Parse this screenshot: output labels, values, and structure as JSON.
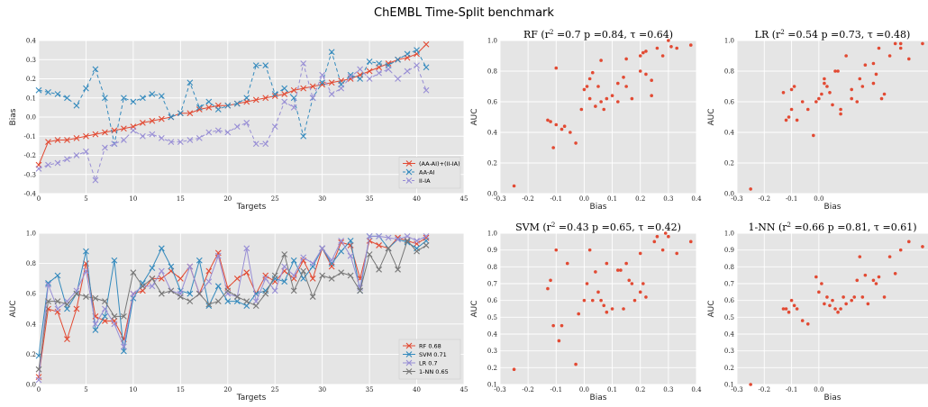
{
  "figure": {
    "title": "ChEMBL Time-Split benchmark"
  },
  "chart_data": [
    {
      "id": "bias-line",
      "type": "line",
      "title": "",
      "xlabel": "Targets",
      "ylabel": "Bias",
      "xlim": [
        0,
        45
      ],
      "ylim": [
        -0.4,
        0.4
      ],
      "xticks": [
        0,
        5,
        10,
        15,
        20,
        25,
        30,
        35,
        40,
        45
      ],
      "yticks": [
        -0.4,
        -0.3,
        -0.2,
        -0.1,
        0.0,
        0.1,
        0.2,
        0.3,
        0.4
      ],
      "grid": true,
      "legend_position": "bottom-right",
      "series": [
        {
          "name": "(AA-AI)+(II-IA)",
          "color": "#e24a33",
          "dashed": false,
          "values": [
            -0.25,
            -0.13,
            -0.12,
            -0.12,
            -0.11,
            -0.1,
            -0.09,
            -0.08,
            -0.07,
            -0.06,
            -0.05,
            -0.03,
            -0.02,
            -0.01,
            0.0,
            0.02,
            0.02,
            0.04,
            0.05,
            0.06,
            0.06,
            0.07,
            0.08,
            0.09,
            0.1,
            0.11,
            0.12,
            0.14,
            0.15,
            0.16,
            0.17,
            0.18,
            0.19,
            0.2,
            0.22,
            0.24,
            0.26,
            0.28,
            0.3,
            0.31,
            0.33,
            0.38
          ]
        },
        {
          "name": "AA-AI",
          "color": "#348abd",
          "dashed": true,
          "values": [
            0.14,
            0.13,
            0.12,
            0.1,
            0.06,
            0.15,
            0.25,
            0.1,
            -0.14,
            0.1,
            0.08,
            0.1,
            0.12,
            0.11,
            0.0,
            0.02,
            0.18,
            0.05,
            0.08,
            0.04,
            0.06,
            0.07,
            0.1,
            0.27,
            0.27,
            0.12,
            0.15,
            0.1,
            -0.1,
            0.1,
            0.18,
            0.34,
            0.17,
            0.22,
            0.2,
            0.29,
            0.28,
            0.27,
            0.3,
            0.33,
            0.35,
            0.26
          ]
        },
        {
          "name": "II-IA",
          "color": "#988ed5",
          "dashed": true,
          "values": [
            -0.27,
            -0.25,
            -0.24,
            -0.22,
            -0.2,
            -0.18,
            -0.33,
            -0.16,
            -0.14,
            -0.12,
            -0.07,
            -0.1,
            -0.09,
            -0.11,
            -0.13,
            -0.13,
            -0.12,
            -0.11,
            -0.08,
            -0.07,
            -0.08,
            -0.05,
            -0.03,
            -0.14,
            -0.14,
            -0.05,
            0.08,
            0.05,
            0.28,
            0.1,
            0.22,
            0.12,
            0.15,
            0.21,
            0.25,
            0.2,
            0.23,
            0.25,
            0.2,
            0.24,
            0.27,
            0.14
          ]
        }
      ]
    },
    {
      "id": "auc-line",
      "type": "line",
      "title": "",
      "xlabel": "Targets",
      "ylabel": "AUC",
      "xlim": [
        0,
        45
      ],
      "ylim": [
        0.0,
        1.0
      ],
      "xticks": [
        0,
        5,
        10,
        15,
        20,
        25,
        30,
        35,
        40,
        45
      ],
      "yticks": [
        0.0,
        0.2,
        0.4,
        0.6,
        0.8,
        1.0
      ],
      "grid": true,
      "legend_position": "bottom-right",
      "series": [
        {
          "name": "RF 0.68",
          "color": "#e24a33",
          "values": [
            0.05,
            0.5,
            0.48,
            0.3,
            0.5,
            0.8,
            0.45,
            0.42,
            0.42,
            0.3,
            0.6,
            0.62,
            0.7,
            0.7,
            0.75,
            0.7,
            0.78,
            0.6,
            0.75,
            0.87,
            0.64,
            0.7,
            0.74,
            0.6,
            0.72,
            0.68,
            0.75,
            0.7,
            0.82,
            0.7,
            0.9,
            0.78,
            0.94,
            0.92,
            0.7,
            0.95,
            0.92,
            0.9,
            0.97,
            0.95,
            0.93,
            0.97
          ]
        },
        {
          "name": "SVM 0.71",
          "color": "#348abd",
          "values": [
            0.19,
            0.67,
            0.72,
            0.5,
            0.6,
            0.88,
            0.36,
            0.45,
            0.82,
            0.22,
            0.57,
            0.67,
            0.77,
            0.9,
            0.78,
            0.62,
            0.6,
            0.82,
            0.52,
            0.65,
            0.55,
            0.55,
            0.52,
            0.6,
            0.62,
            0.7,
            0.68,
            0.82,
            0.7,
            0.78,
            0.9,
            0.8,
            0.88,
            0.95,
            0.62,
            0.98,
            0.98,
            0.9,
            0.96,
            0.94,
            0.9,
            0.95
          ]
        },
        {
          "name": "LR 0.7",
          "color": "#988ed5",
          "values": [
            0.03,
            0.66,
            0.5,
            0.55,
            0.62,
            0.75,
            0.4,
            0.5,
            0.4,
            0.25,
            0.6,
            0.65,
            0.65,
            0.75,
            0.62,
            0.6,
            0.78,
            0.6,
            0.68,
            0.85,
            0.6,
            0.58,
            0.9,
            0.55,
            0.7,
            0.62,
            0.78,
            0.72,
            0.84,
            0.8,
            0.9,
            0.82,
            0.95,
            0.85,
            0.64,
            0.98,
            0.98,
            0.97,
            0.96,
            0.98,
            0.95,
            0.98
          ]
        },
        {
          "name": "1-NN 0.65",
          "color": "#777777",
          "values": [
            0.1,
            0.55,
            0.55,
            0.53,
            0.6,
            0.58,
            0.57,
            0.55,
            0.45,
            0.45,
            0.74,
            0.65,
            0.7,
            0.6,
            0.62,
            0.58,
            0.55,
            0.6,
            0.53,
            0.55,
            0.62,
            0.58,
            0.55,
            0.52,
            0.6,
            0.72,
            0.86,
            0.62,
            0.75,
            0.58,
            0.72,
            0.7,
            0.74,
            0.72,
            0.62,
            0.86,
            0.76,
            0.9,
            0.76,
            0.95,
            0.88,
            0.92
          ]
        }
      ],
      "values_by_note": "RF/SVM/LR/1-NN AUC per target"
    },
    {
      "id": "scatter-rf",
      "type": "scatter",
      "title": "RF (r² =0.7 p =0.84, τ =0.64)",
      "xlabel": "Bias",
      "ylabel": "AUC",
      "xlim": [
        -0.3,
        0.4
      ],
      "ylim": [
        0.0,
        1.0
      ],
      "xticks": [
        -0.3,
        -0.2,
        -0.1,
        0.0,
        0.1,
        0.2,
        0.3,
        0.4
      ],
      "yticks": [
        0.0,
        0.2,
        0.4,
        0.6,
        0.8,
        1.0
      ],
      "color": "#e24a33",
      "points": [
        [
          -0.25,
          0.05
        ],
        [
          -0.13,
          0.48
        ],
        [
          -0.12,
          0.47
        ],
        [
          -0.11,
          0.3
        ],
        [
          -0.1,
          0.45
        ],
        [
          -0.1,
          0.82
        ],
        [
          -0.08,
          0.42
        ],
        [
          -0.07,
          0.44
        ],
        [
          -0.05,
          0.4
        ],
        [
          -0.03,
          0.33
        ],
        [
          -0.01,
          0.55
        ],
        [
          0.0,
          0.68
        ],
        [
          0.01,
          0.7
        ],
        [
          0.02,
          0.62
        ],
        [
          0.02,
          0.75
        ],
        [
          0.03,
          0.79
        ],
        [
          0.04,
          0.57
        ],
        [
          0.05,
          0.7
        ],
        [
          0.06,
          0.6
        ],
        [
          0.06,
          0.87
        ],
        [
          0.07,
          0.55
        ],
        [
          0.08,
          0.62
        ],
        [
          0.1,
          0.64
        ],
        [
          0.12,
          0.6
        ],
        [
          0.12,
          0.72
        ],
        [
          0.14,
          0.76
        ],
        [
          0.15,
          0.88
        ],
        [
          0.15,
          0.7
        ],
        [
          0.17,
          0.62
        ],
        [
          0.2,
          0.8
        ],
        [
          0.2,
          0.9
        ],
        [
          0.21,
          0.92
        ],
        [
          0.22,
          0.78
        ],
        [
          0.22,
          0.93
        ],
        [
          0.24,
          0.74
        ],
        [
          0.24,
          0.64
        ],
        [
          0.26,
          0.95
        ],
        [
          0.28,
          0.9
        ],
        [
          0.3,
          1.0
        ],
        [
          0.31,
          0.96
        ],
        [
          0.33,
          0.95
        ],
        [
          0.38,
          0.97
        ]
      ]
    },
    {
      "id": "scatter-lr",
      "type": "scatter",
      "title": "LR (r² =0.54 p =0.73, τ =0.48)",
      "xlabel": "Bias",
      "ylabel": "AUC",
      "xlim": [
        -0.3,
        0.4
      ],
      "ylim": [
        0.0,
        1.0
      ],
      "xticks": [
        -0.3,
        -0.2,
        -0.1,
        0.0
      ],
      "yticks": [
        0.0,
        0.2,
        0.4,
        0.6,
        0.8,
        1.0
      ],
      "color": "#e24a33",
      "points": [
        [
          -0.25,
          0.03
        ],
        [
          -0.13,
          0.66
        ],
        [
          -0.12,
          0.48
        ],
        [
          -0.11,
          0.5
        ],
        [
          -0.1,
          0.55
        ],
        [
          -0.1,
          0.68
        ],
        [
          -0.09,
          0.7
        ],
        [
          -0.08,
          0.48
        ],
        [
          -0.06,
          0.6
        ],
        [
          -0.04,
          0.55
        ],
        [
          -0.02,
          0.38
        ],
        [
          -0.01,
          0.6
        ],
        [
          0.0,
          0.62
        ],
        [
          0.01,
          0.65
        ],
        [
          0.02,
          0.75
        ],
        [
          0.02,
          0.72
        ],
        [
          0.03,
          0.7
        ],
        [
          0.04,
          0.66
        ],
        [
          0.05,
          0.58
        ],
        [
          0.06,
          0.8
        ],
        [
          0.07,
          0.8
        ],
        [
          0.08,
          0.55
        ],
        [
          0.08,
          0.52
        ],
        [
          0.1,
          0.9
        ],
        [
          0.12,
          0.68
        ],
        [
          0.12,
          0.62
        ],
        [
          0.14,
          0.6
        ],
        [
          0.15,
          0.75
        ],
        [
          0.16,
          0.7
        ],
        [
          0.17,
          0.84
        ],
        [
          0.2,
          0.72
        ],
        [
          0.2,
          0.85
        ],
        [
          0.21,
          0.78
        ],
        [
          0.22,
          0.95
        ],
        [
          0.23,
          0.62
        ],
        [
          0.24,
          0.65
        ],
        [
          0.26,
          0.9
        ],
        [
          0.28,
          0.98
        ],
        [
          0.3,
          0.95
        ],
        [
          0.3,
          0.98
        ],
        [
          0.33,
          0.88
        ],
        [
          0.38,
          0.98
        ]
      ]
    },
    {
      "id": "scatter-svm",
      "type": "scatter",
      "title": "SVM (r² =0.43 p =0.65, τ =0.42)",
      "xlabel": "Bias",
      "ylabel": "AUC",
      "xlim": [
        -0.3,
        0.4
      ],
      "ylim": [
        0.1,
        1.0
      ],
      "xticks": [
        -0.3,
        -0.2,
        -0.1,
        0.0,
        0.1,
        0.2,
        0.3,
        0.4
      ],
      "yticks": [
        0.1,
        0.2,
        0.3,
        0.4,
        0.5,
        0.6,
        0.7,
        0.8,
        0.9,
        1.0
      ],
      "color": "#e24a33",
      "points": [
        [
          -0.25,
          0.19
        ],
        [
          -0.13,
          0.67
        ],
        [
          -0.12,
          0.72
        ],
        [
          -0.11,
          0.45
        ],
        [
          -0.1,
          0.9
        ],
        [
          -0.09,
          0.36
        ],
        [
          -0.08,
          0.45
        ],
        [
          -0.06,
          0.82
        ],
        [
          -0.03,
          0.22
        ],
        [
          -0.02,
          0.52
        ],
        [
          0.0,
          0.6
        ],
        [
          0.01,
          0.7
        ],
        [
          0.02,
          0.9
        ],
        [
          0.03,
          0.6
        ],
        [
          0.04,
          0.77
        ],
        [
          0.05,
          0.65
        ],
        [
          0.06,
          0.6
        ],
        [
          0.07,
          0.57
        ],
        [
          0.08,
          0.53
        ],
        [
          0.08,
          0.82
        ],
        [
          0.1,
          0.55
        ],
        [
          0.12,
          0.78
        ],
        [
          0.13,
          0.78
        ],
        [
          0.14,
          0.55
        ],
        [
          0.15,
          0.82
        ],
        [
          0.16,
          0.72
        ],
        [
          0.17,
          0.7
        ],
        [
          0.18,
          0.6
        ],
        [
          0.2,
          0.88
        ],
        [
          0.2,
          0.65
        ],
        [
          0.21,
          0.7
        ],
        [
          0.22,
          0.62
        ],
        [
          0.25,
          0.95
        ],
        [
          0.26,
          0.98
        ],
        [
          0.28,
          0.9
        ],
        [
          0.29,
          1.0
        ],
        [
          0.3,
          0.98
        ],
        [
          0.33,
          0.88
        ],
        [
          0.38,
          0.95
        ]
      ]
    },
    {
      "id": "scatter-1nn",
      "type": "scatter",
      "title": "1-NN (r² =0.66 p =0.81, τ =0.61)",
      "xlabel": "Bias",
      "ylabel": "AUC",
      "xlim": [
        -0.3,
        0.4
      ],
      "ylim": [
        0.1,
        1.0
      ],
      "xticks": [
        -0.3,
        -0.2,
        -0.1,
        0.0
      ],
      "yticks": [
        0.1,
        0.2,
        0.3,
        0.4,
        0.5,
        0.6,
        0.7,
        0.8,
        0.9,
        1.0
      ],
      "color": "#e24a33",
      "points": [
        [
          -0.25,
          0.1
        ],
        [
          -0.13,
          0.55
        ],
        [
          -0.12,
          0.55
        ],
        [
          -0.11,
          0.53
        ],
        [
          -0.1,
          0.6
        ],
        [
          -0.09,
          0.57
        ],
        [
          -0.08,
          0.55
        ],
        [
          -0.06,
          0.48
        ],
        [
          -0.04,
          0.46
        ],
        [
          -0.01,
          0.74
        ],
        [
          0.0,
          0.65
        ],
        [
          0.01,
          0.7
        ],
        [
          0.02,
          0.58
        ],
        [
          0.03,
          0.62
        ],
        [
          0.04,
          0.57
        ],
        [
          0.05,
          0.6
        ],
        [
          0.06,
          0.55
        ],
        [
          0.07,
          0.53
        ],
        [
          0.08,
          0.55
        ],
        [
          0.09,
          0.62
        ],
        [
          0.1,
          0.58
        ],
        [
          0.12,
          0.6
        ],
        [
          0.13,
          0.62
        ],
        [
          0.14,
          0.72
        ],
        [
          0.15,
          0.86
        ],
        [
          0.16,
          0.62
        ],
        [
          0.17,
          0.75
        ],
        [
          0.18,
          0.58
        ],
        [
          0.2,
          0.72
        ],
        [
          0.21,
          0.7
        ],
        [
          0.22,
          0.74
        ],
        [
          0.24,
          0.62
        ],
        [
          0.26,
          0.86
        ],
        [
          0.28,
          0.76
        ],
        [
          0.3,
          0.9
        ],
        [
          0.33,
          0.95
        ],
        [
          0.38,
          0.92
        ]
      ]
    }
  ]
}
